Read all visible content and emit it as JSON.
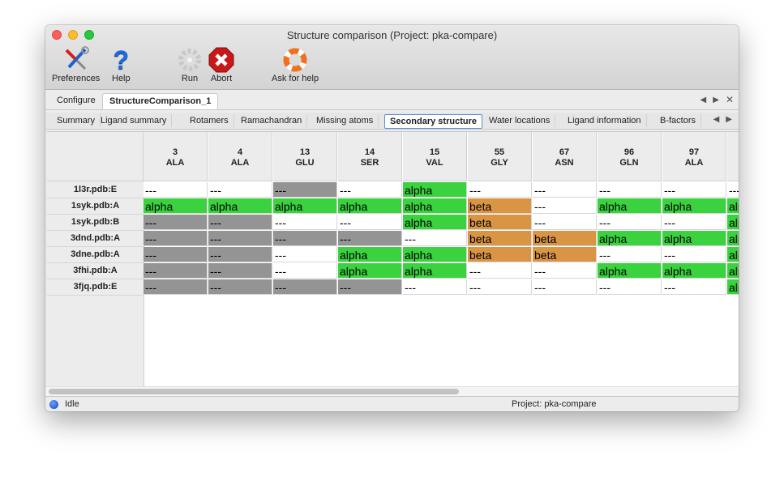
{
  "window": {
    "title": "Structure comparison (Project: pka-compare)"
  },
  "toolbar": [
    {
      "label": "Preferences",
      "icon": "tools-icon"
    },
    {
      "label": "Help",
      "icon": "help-icon"
    },
    {
      "label": "Run",
      "icon": "gear-icon"
    },
    {
      "label": "Abort",
      "icon": "abort-icon"
    },
    {
      "label": "Ask for help",
      "icon": "lifebuoy-icon"
    }
  ],
  "tabs": [
    {
      "label": "Configure"
    },
    {
      "label": "StructureComparison_1",
      "active": true
    }
  ],
  "subtabs": [
    {
      "label": "Summary"
    },
    {
      "label": "Ligand summary"
    },
    {
      "label": "Rotamers"
    },
    {
      "label": "Ramachandran"
    },
    {
      "label": "Missing atoms"
    },
    {
      "label": "Secondary structure",
      "active": true
    },
    {
      "label": "Water locations"
    },
    {
      "label": "Ligand information"
    },
    {
      "label": "B-factors"
    }
  ],
  "colors": {
    "alpha": "#3ad23f",
    "beta": "#d99444",
    "missing": "#949494",
    "none": "#ffffff"
  },
  "table": {
    "columns": [
      {
        "num": "3",
        "res": "ALA"
      },
      {
        "num": "4",
        "res": "ALA"
      },
      {
        "num": "13",
        "res": "GLU"
      },
      {
        "num": "14",
        "res": "SER"
      },
      {
        "num": "15",
        "res": "VAL"
      },
      {
        "num": "55",
        "res": "GLY"
      },
      {
        "num": "67",
        "res": "ASN"
      },
      {
        "num": "96",
        "res": "GLN"
      },
      {
        "num": "97",
        "res": "ALA"
      },
      {
        "num": "",
        "res": ""
      }
    ],
    "rows": [
      {
        "label": "1l3r.pdb:E",
        "cells": [
          [
            "---",
            "none"
          ],
          [
            "---",
            "none"
          ],
          [
            "---",
            "missing"
          ],
          [
            "---",
            "none"
          ],
          [
            "alpha",
            "alpha"
          ],
          [
            "---",
            "none"
          ],
          [
            "---",
            "none"
          ],
          [
            "---",
            "none"
          ],
          [
            "---",
            "none"
          ],
          [
            "---",
            "none"
          ]
        ]
      },
      {
        "label": "1syk.pdb:A",
        "cells": [
          [
            "alpha",
            "alpha"
          ],
          [
            "alpha",
            "alpha"
          ],
          [
            "alpha",
            "alpha"
          ],
          [
            "alpha",
            "alpha"
          ],
          [
            "alpha",
            "alpha"
          ],
          [
            "beta",
            "beta"
          ],
          [
            "---",
            "none"
          ],
          [
            "alpha",
            "alpha"
          ],
          [
            "alpha",
            "alpha"
          ],
          [
            "alpha",
            "alpha"
          ]
        ]
      },
      {
        "label": "1syk.pdb:B",
        "cells": [
          [
            "---",
            "missing"
          ],
          [
            "---",
            "missing"
          ],
          [
            "---",
            "none"
          ],
          [
            "---",
            "none"
          ],
          [
            "alpha",
            "alpha"
          ],
          [
            "beta",
            "beta"
          ],
          [
            "---",
            "none"
          ],
          [
            "---",
            "none"
          ],
          [
            "---",
            "none"
          ],
          [
            "alpha",
            "alpha"
          ]
        ]
      },
      {
        "label": "3dnd.pdb:A",
        "cells": [
          [
            "---",
            "missing"
          ],
          [
            "---",
            "missing"
          ],
          [
            "---",
            "missing"
          ],
          [
            "---",
            "missing"
          ],
          [
            "---",
            "none"
          ],
          [
            "beta",
            "beta"
          ],
          [
            "beta",
            "beta"
          ],
          [
            "alpha",
            "alpha"
          ],
          [
            "alpha",
            "alpha"
          ],
          [
            "alpha",
            "alpha"
          ]
        ]
      },
      {
        "label": "3dne.pdb:A",
        "cells": [
          [
            "---",
            "missing"
          ],
          [
            "---",
            "missing"
          ],
          [
            "---",
            "none"
          ],
          [
            "alpha",
            "alpha"
          ],
          [
            "alpha",
            "alpha"
          ],
          [
            "beta",
            "beta"
          ],
          [
            "beta",
            "beta"
          ],
          [
            "---",
            "none"
          ],
          [
            "---",
            "none"
          ],
          [
            "alpha",
            "alpha"
          ]
        ]
      },
      {
        "label": "3fhi.pdb:A",
        "cells": [
          [
            "---",
            "missing"
          ],
          [
            "---",
            "missing"
          ],
          [
            "---",
            "none"
          ],
          [
            "alpha",
            "alpha"
          ],
          [
            "alpha",
            "alpha"
          ],
          [
            "---",
            "none"
          ],
          [
            "---",
            "none"
          ],
          [
            "alpha",
            "alpha"
          ],
          [
            "alpha",
            "alpha"
          ],
          [
            "alpha",
            "alpha"
          ]
        ]
      },
      {
        "label": "3fjq.pdb:E",
        "cells": [
          [
            "---",
            "missing"
          ],
          [
            "---",
            "missing"
          ],
          [
            "---",
            "missing"
          ],
          [
            "---",
            "missing"
          ],
          [
            "---",
            "none"
          ],
          [
            "---",
            "none"
          ],
          [
            "---",
            "none"
          ],
          [
            "---",
            "none"
          ],
          [
            "---",
            "none"
          ],
          [
            "alpha",
            "alpha"
          ]
        ]
      }
    ]
  },
  "status": {
    "state": "Idle",
    "project": "Project: pka-compare"
  }
}
